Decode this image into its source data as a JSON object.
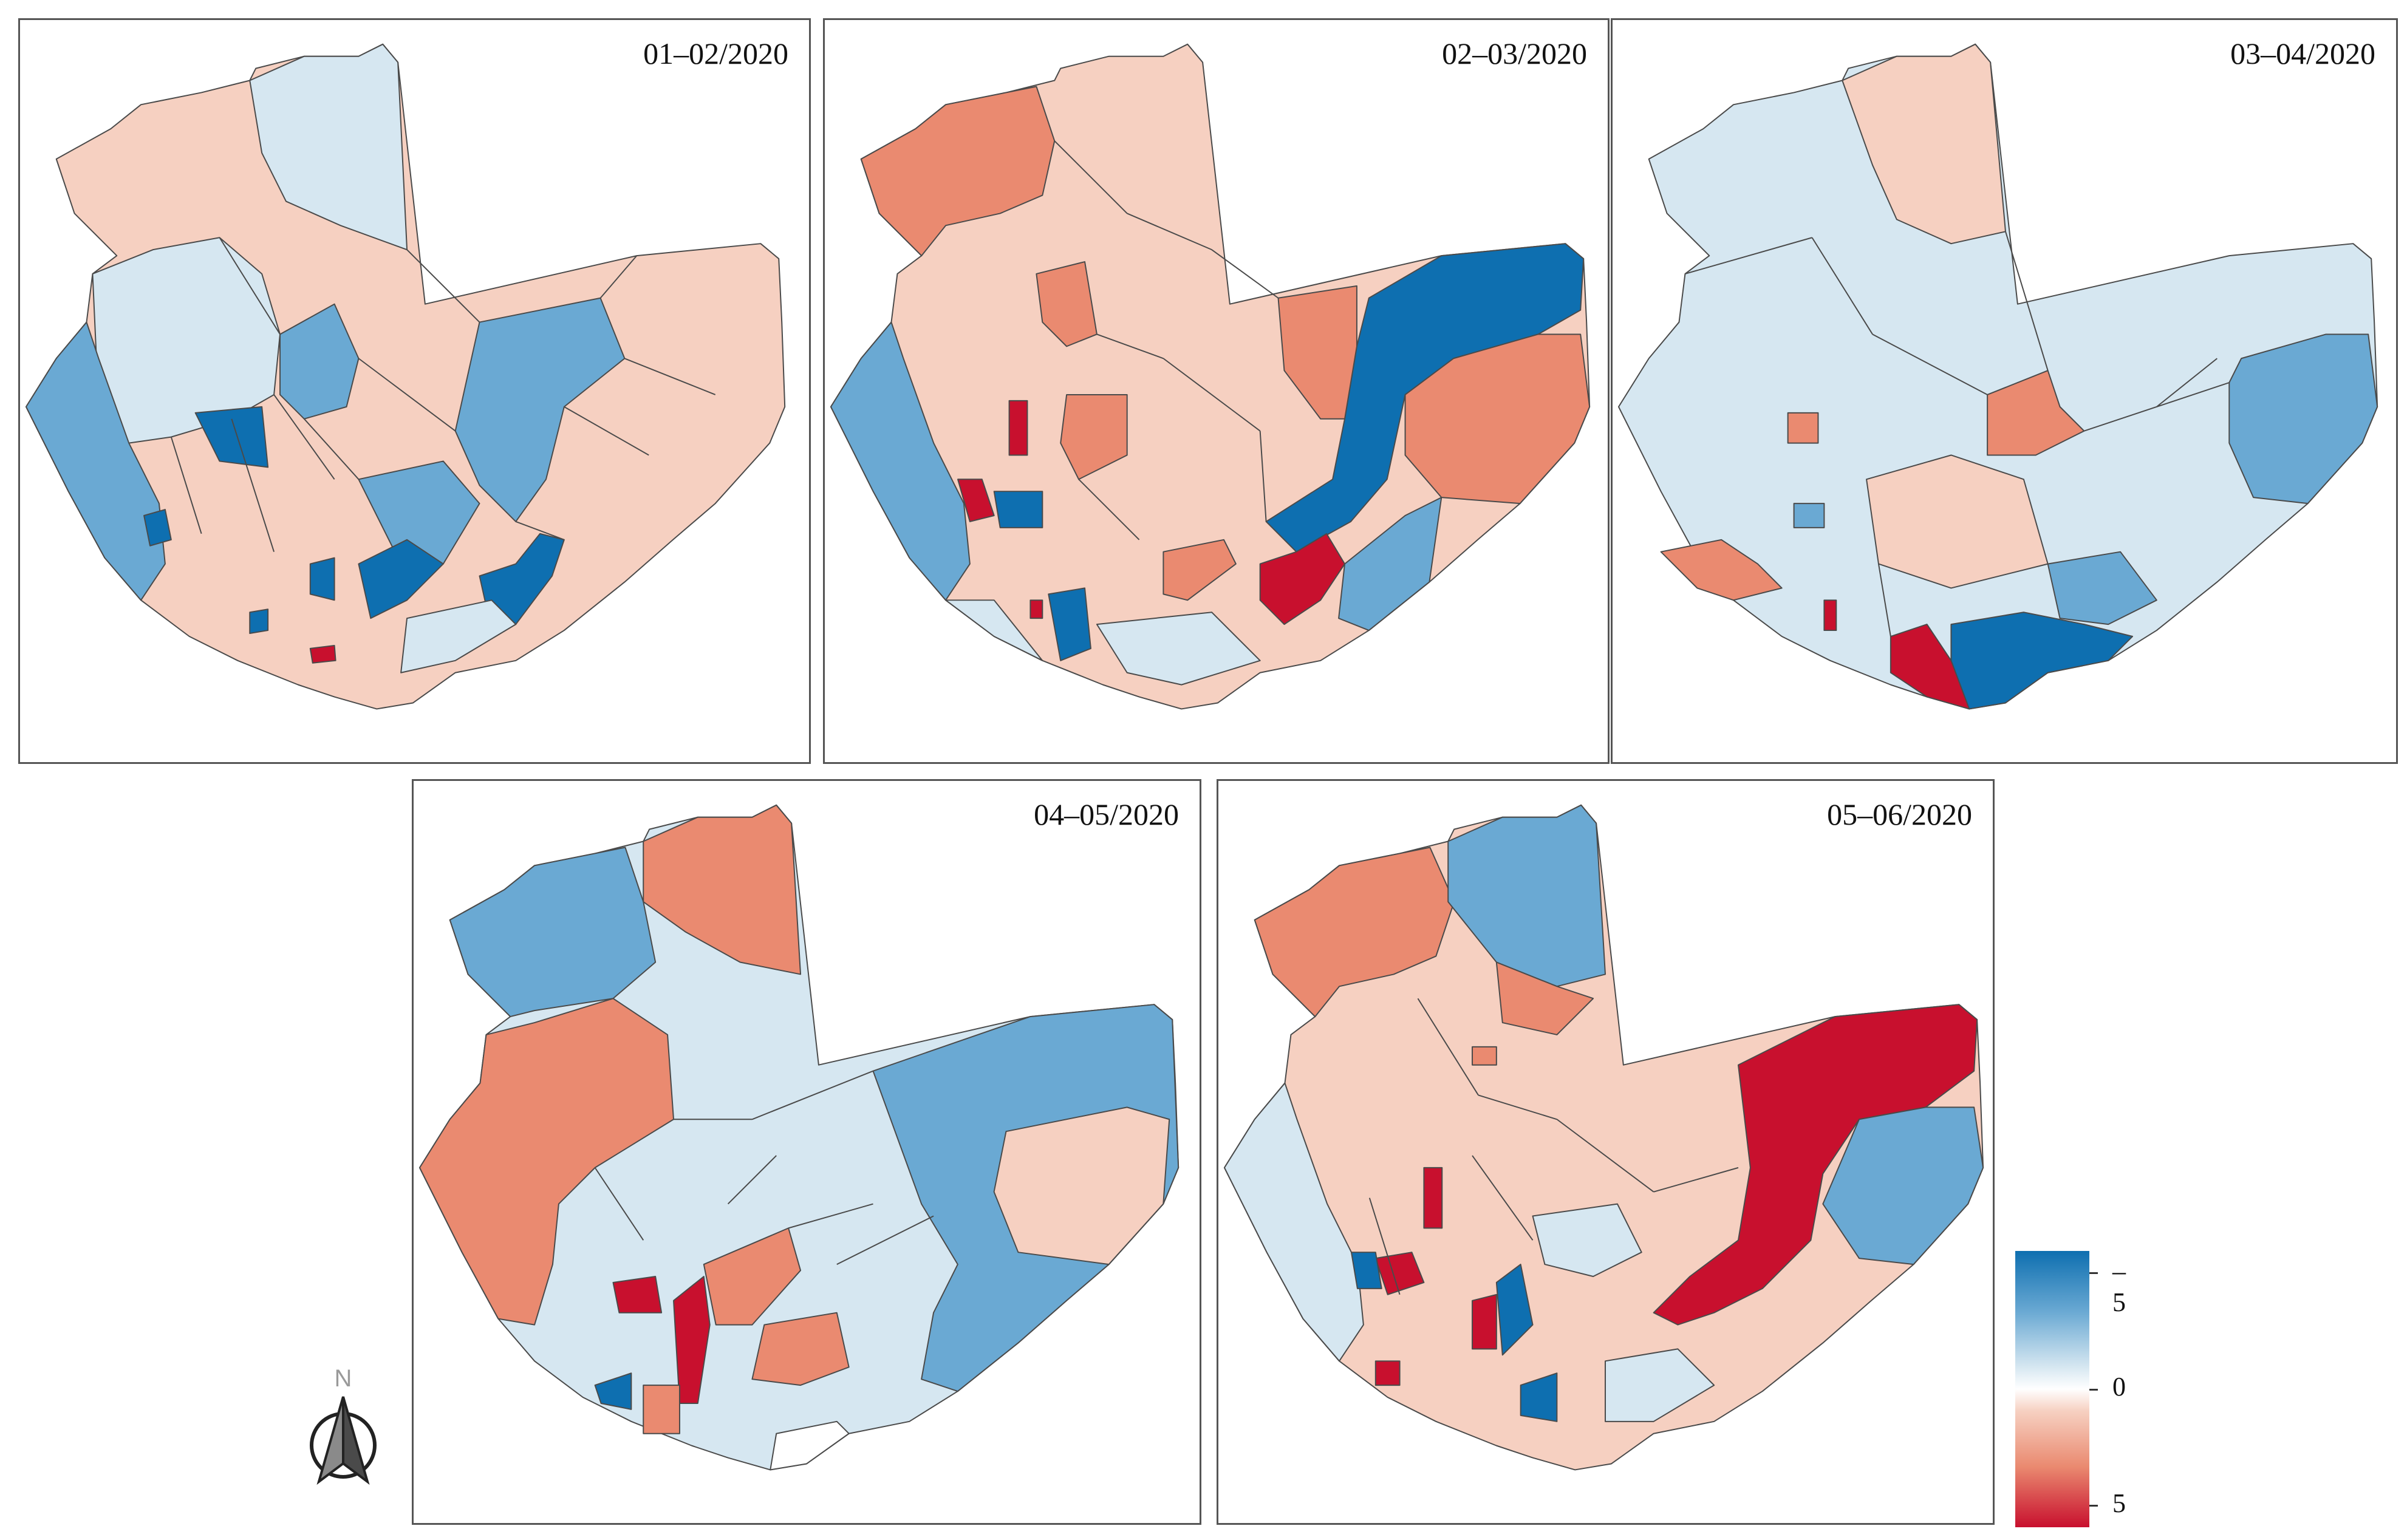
{
  "panels": [
    {
      "label": "01–02/2020"
    },
    {
      "label": "02–03/2020"
    },
    {
      "label": "03–04/2020"
    },
    {
      "label": "04–05/2020"
    },
    {
      "label": "05–06/2020"
    }
  ],
  "legend": {
    "labels": [
      "–5",
      "0",
      "5"
    ],
    "colors": {
      "strong_blue": "#0e6fb0",
      "blue": "#6aa9d3",
      "light_blue": "#d6e7f1",
      "white": "#ffffff",
      "light_red": "#f6d0c1",
      "red": "#ea8a70",
      "strong_red": "#c8102e"
    }
  },
  "north_arrow": {
    "label": "N"
  }
}
